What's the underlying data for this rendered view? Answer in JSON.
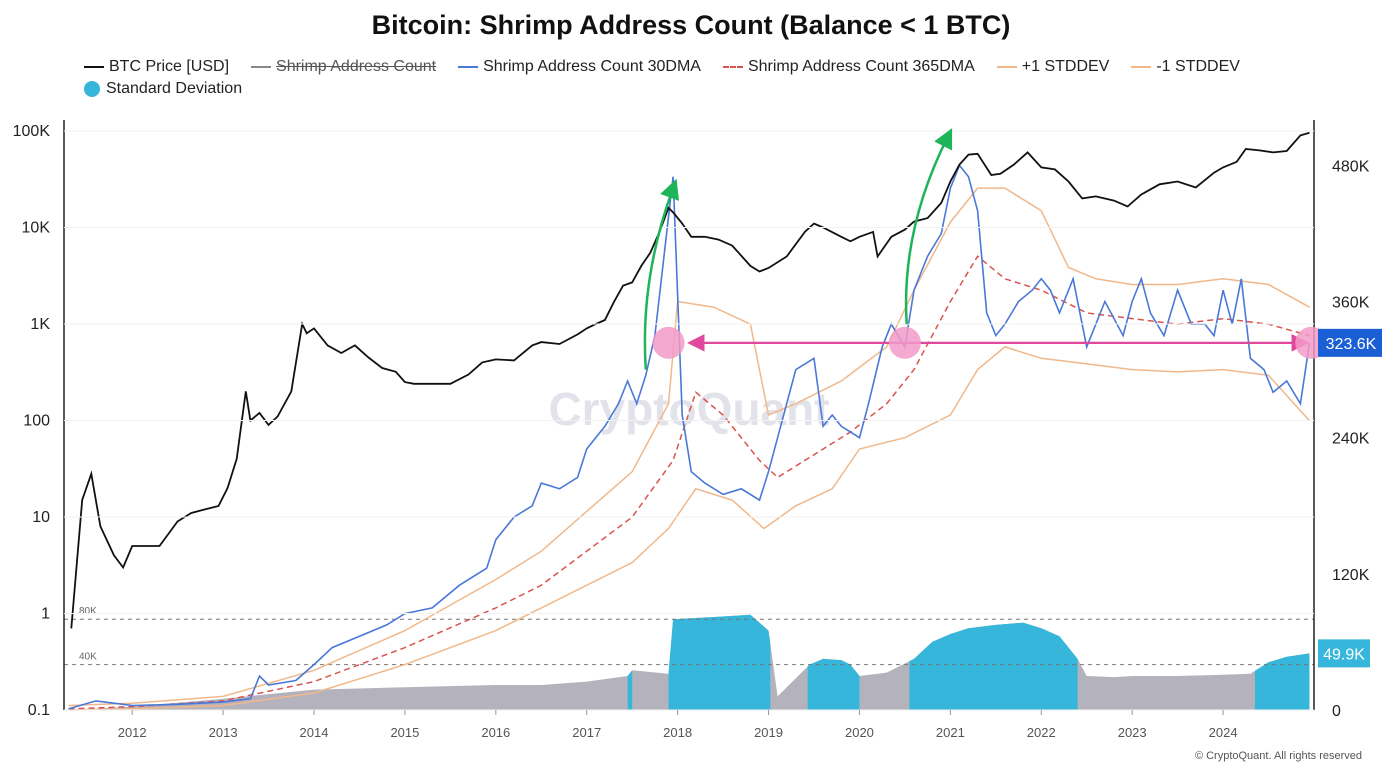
{
  "title": "Bitcoin: Shrimp Address Count (Balance < 1 BTC)",
  "copyright": "© CryptoQuant. All rights reserved",
  "watermark": "CryptoQuant",
  "colors": {
    "price": "#111111",
    "shrimp_raw": "#888888",
    "dma30": "#4a78d8",
    "dma365": "#d9534f",
    "std_band": "#f0b88a",
    "std_dev": "#36b6da",
    "std_dev_grey": "#b4b3bd",
    "arrow_green": "#1db45a",
    "arrow_pink": "#e0489e",
    "marker_pink": "#f29ac8",
    "value_box_blue": "#1a5fd6",
    "value_box_cyan": "#36b6da"
  },
  "legend": [
    {
      "label": "BTC Price [USD]",
      "key": "price",
      "style": "solid",
      "strike": false
    },
    {
      "label": "Shrimp Address Count",
      "key": "shrimp_raw",
      "style": "solid",
      "strike": true
    },
    {
      "label": "Shrimp Address Count 30DMA",
      "key": "dma30",
      "style": "solid",
      "strike": false
    },
    {
      "label": "Shrimp Address Count 365DMA",
      "key": "dma365",
      "style": "dashed",
      "strike": false
    },
    {
      "label": "+1 STDDEV",
      "key": "std_band",
      "style": "solid",
      "strike": false
    },
    {
      "label": "-1 STDDEV",
      "key": "std_band",
      "style": "solid",
      "strike": false
    },
    {
      "label": "Standard Deviation",
      "key": "std_dev",
      "style": "dot",
      "strike": false
    }
  ],
  "annotations": {
    "current_value_label": "323.6K",
    "std_value_label": "49.9K",
    "std_ref_80k": "80K",
    "std_ref_40k": "40K"
  },
  "chart_data": {
    "type": "line",
    "x_ticks": [
      "2012",
      "2013",
      "2014",
      "2015",
      "2016",
      "2017",
      "2018",
      "2019",
      "2020",
      "2021",
      "2022",
      "2023",
      "2024"
    ],
    "xlim": [
      2011.25,
      2025.0
    ],
    "y_left": {
      "scale": "log",
      "ticks": [
        "0.1",
        "1",
        "10",
        "100",
        "1K",
        "10K",
        "100K"
      ],
      "tick_values": [
        0.1,
        1,
        10,
        100,
        1000,
        10000,
        100000
      ],
      "ylim": [
        0.1,
        130000
      ]
    },
    "y_right": {
      "scale": "linear",
      "ticks": [
        "0",
        "120K",
        "240K",
        "360K",
        "480K"
      ],
      "tick_values": [
        0,
        120000,
        240000,
        360000,
        480000
      ],
      "ylim": [
        0,
        520000
      ]
    },
    "series": [
      {
        "name": "BTC Price [USD]",
        "axis": "left",
        "x": [
          2011.33,
          2011.45,
          2011.55,
          2011.65,
          2011.8,
          2011.9,
          2012.0,
          2012.1,
          2012.3,
          2012.5,
          2012.65,
          2012.8,
          2012.95,
          2013.05,
          2013.15,
          2013.25,
          2013.3,
          2013.4,
          2013.5,
          2013.6,
          2013.75,
          2013.87,
          2013.92,
          2014.0,
          2014.15,
          2014.3,
          2014.45,
          2014.6,
          2014.75,
          2014.9,
          2015.0,
          2015.1,
          2015.3,
          2015.5,
          2015.7,
          2015.85,
          2016.0,
          2016.2,
          2016.4,
          2016.5,
          2016.7,
          2016.9,
          2017.0,
          2017.1,
          2017.2,
          2017.3,
          2017.4,
          2017.5,
          2017.6,
          2017.7,
          2017.8,
          2017.9,
          2017.96,
          2018.05,
          2018.15,
          2018.3,
          2018.45,
          2018.6,
          2018.8,
          2018.9,
          2019.0,
          2019.2,
          2019.4,
          2019.5,
          2019.6,
          2019.8,
          2019.9,
          2020.0,
          2020.15,
          2020.2,
          2020.35,
          2020.5,
          2020.6,
          2020.75,
          2020.9,
          2021.0,
          2021.1,
          2021.2,
          2021.3,
          2021.45,
          2021.55,
          2021.7,
          2021.85,
          2022.0,
          2022.15,
          2022.3,
          2022.45,
          2022.6,
          2022.8,
          2022.95,
          2023.1,
          2023.3,
          2023.5,
          2023.7,
          2023.9,
          2024.0,
          2024.15,
          2024.25,
          2024.4,
          2024.55,
          2024.7,
          2024.85,
          2024.95
        ],
        "y": [
          0.7,
          15,
          28,
          8,
          4,
          3,
          5,
          5,
          5,
          9,
          11,
          12,
          13,
          20,
          40,
          200,
          100,
          120,
          90,
          110,
          200,
          1000,
          800,
          900,
          600,
          500,
          600,
          450,
          350,
          320,
          250,
          240,
          240,
          240,
          300,
          400,
          430,
          420,
          600,
          650,
          620,
          780,
          900,
          1000,
          1100,
          1700,
          2500,
          2700,
          4000,
          5500,
          9000,
          16000,
          14000,
          11000,
          8000,
          8000,
          7500,
          6500,
          4000,
          3500,
          3800,
          5000,
          9000,
          11000,
          10000,
          8000,
          7200,
          8000,
          9000,
          5000,
          8000,
          9500,
          11500,
          12500,
          18000,
          30000,
          45000,
          57000,
          58000,
          35000,
          36000,
          45000,
          60000,
          42000,
          40000,
          30000,
          20000,
          21000,
          19000,
          16500,
          22000,
          28000,
          30000,
          26000,
          37000,
          42000,
          48000,
          65000,
          63000,
          60000,
          62000,
          90000,
          96000
        ]
      },
      {
        "name": "Shrimp Address Count 30DMA",
        "axis": "right",
        "x": [
          2011.3,
          2011.6,
          2012.0,
          2012.5,
          2013.0,
          2013.3,
          2013.4,
          2013.5,
          2013.8,
          2014.0,
          2014.2,
          2014.5,
          2014.8,
          2015.0,
          2015.3,
          2015.6,
          2015.9,
          2016.0,
          2016.2,
          2016.4,
          2016.5,
          2016.7,
          2016.9,
          2017.0,
          2017.2,
          2017.35,
          2017.45,
          2017.55,
          2017.65,
          2017.75,
          2017.85,
          2017.95,
          2018.05,
          2018.15,
          2018.3,
          2018.5,
          2018.7,
          2018.9,
          2019.0,
          2019.1,
          2019.3,
          2019.5,
          2019.6,
          2019.7,
          2019.8,
          2020.0,
          2020.1,
          2020.25,
          2020.35,
          2020.5,
          2020.6,
          2020.75,
          2020.9,
          2021.0,
          2021.1,
          2021.2,
          2021.3,
          2021.4,
          2021.5,
          2021.6,
          2021.75,
          2021.9,
          2022.0,
          2022.1,
          2022.2,
          2022.35,
          2022.5,
          2022.7,
          2022.9,
          2023.0,
          2023.1,
          2023.2,
          2023.35,
          2023.5,
          2023.65,
          2023.8,
          2023.9,
          2024.0,
          2024.1,
          2024.2,
          2024.3,
          2024.45,
          2024.55,
          2024.7,
          2024.85,
          2024.95
        ],
        "y": [
          1000,
          8000,
          4000,
          5000,
          7000,
          10000,
          30000,
          22000,
          26000,
          40000,
          55000,
          65000,
          75000,
          85000,
          90000,
          110000,
          125000,
          150000,
          170000,
          180000,
          200000,
          195000,
          205000,
          230000,
          250000,
          270000,
          290000,
          270000,
          295000,
          330000,
          400000,
          470000,
          260000,
          210000,
          200000,
          190000,
          195000,
          185000,
          210000,
          240000,
          300000,
          310000,
          250000,
          260000,
          250000,
          240000,
          270000,
          320000,
          340000,
          320000,
          370000,
          400000,
          420000,
          460000,
          480000,
          470000,
          440000,
          350000,
          330000,
          340000,
          360000,
          370000,
          380000,
          370000,
          350000,
          380000,
          320000,
          360000,
          330000,
          360000,
          380000,
          350000,
          330000,
          370000,
          340000,
          340000,
          330000,
          370000,
          340000,
          380000,
          310000,
          300000,
          280000,
          290000,
          270000,
          323600
        ]
      },
      {
        "name": "Shrimp Address Count 365DMA",
        "axis": "right",
        "x": [
          2011.3,
          2012.0,
          2013.0,
          2014.0,
          2015.0,
          2016.0,
          2016.5,
          2017.0,
          2017.5,
          2017.95,
          2018.2,
          2018.5,
          2018.9,
          2019.1,
          2019.5,
          2019.9,
          2020.3,
          2020.6,
          2021.0,
          2021.3,
          2021.6,
          2022.0,
          2022.5,
          2023.0,
          2023.5,
          2024.0,
          2024.5,
          2024.95
        ],
        "y": [
          1000,
          3000,
          8000,
          25000,
          55000,
          90000,
          110000,
          140000,
          170000,
          220000,
          280000,
          260000,
          220000,
          205000,
          225000,
          245000,
          270000,
          300000,
          360000,
          400000,
          380000,
          370000,
          350000,
          345000,
          340000,
          345000,
          340000,
          330000
        ]
      },
      {
        "name": "+1 STDDEV",
        "axis": "right",
        "x": [
          2011.3,
          2012.0,
          2013.0,
          2014.0,
          2015.0,
          2016.0,
          2016.5,
          2017.0,
          2017.5,
          2017.9,
          2018.0,
          2018.4,
          2018.8,
          2019.0,
          2019.3,
          2019.8,
          2020.3,
          2020.6,
          2021.0,
          2021.3,
          2021.6,
          2022.0,
          2022.3,
          2022.6,
          2023.0,
          2023.5,
          2024.0,
          2024.5,
          2024.95
        ],
        "y": [
          4000,
          6000,
          12000,
          35000,
          70000,
          115000,
          140000,
          175000,
          210000,
          270000,
          360000,
          355000,
          340000,
          260000,
          270000,
          290000,
          320000,
          370000,
          430000,
          460000,
          460000,
          440000,
          390000,
          380000,
          375000,
          375000,
          380000,
          375000,
          355000
        ]
      },
      {
        "name": "-1 STDDEV",
        "axis": "right",
        "x": [
          2011.3,
          2012.0,
          2013.0,
          2014.0,
          2015.0,
          2016.0,
          2016.5,
          2017.0,
          2017.5,
          2017.9,
          2018.2,
          2018.6,
          2018.95,
          2019.3,
          2019.7,
          2020.0,
          2020.5,
          2021.0,
          2021.3,
          2021.6,
          2022.0,
          2022.5,
          2023.0,
          2023.5,
          2024.0,
          2024.5,
          2024.95
        ],
        "y": [
          0,
          1000,
          4000,
          15000,
          40000,
          70000,
          90000,
          110000,
          130000,
          160000,
          195000,
          185000,
          160000,
          180000,
          195000,
          230000,
          240000,
          260000,
          300000,
          320000,
          310000,
          305000,
          300000,
          298000,
          300000,
          295000,
          255000
        ]
      },
      {
        "name": "Standard Deviation",
        "axis": "right",
        "x": [
          2011.3,
          2012.0,
          2013.0,
          2014.0,
          2015.0,
          2016.0,
          2016.5,
          2017.0,
          2017.45,
          2017.5,
          2017.9,
          2017.95,
          2018.4,
          2018.8,
          2019.0,
          2019.1,
          2019.2,
          2019.45,
          2019.6,
          2019.8,
          2019.9,
          2020.0,
          2020.3,
          2020.6,
          2020.8,
          2021.0,
          2021.2,
          2021.5,
          2021.8,
          2022.0,
          2022.2,
          2022.4,
          2022.5,
          2022.8,
          2023.0,
          2023.5,
          2024.0,
          2024.3,
          2024.5,
          2024.7,
          2024.95
        ],
        "y": [
          0,
          3000,
          10000,
          18000,
          20000,
          22000,
          22000,
          25000,
          30000,
          35000,
          32000,
          80000,
          82000,
          84000,
          70000,
          12000,
          20000,
          40000,
          45000,
          44000,
          40000,
          30000,
          33000,
          45000,
          60000,
          67000,
          72000,
          75000,
          77000,
          72000,
          65000,
          45000,
          30000,
          29000,
          30000,
          30000,
          31000,
          32000,
          42000,
          47000,
          49900
        ]
      }
    ],
    "std_highlight_ranges": [
      [
        2017.45,
        2017.5
      ],
      [
        2017.9,
        2019.02
      ],
      [
        2019.43,
        2020.0
      ],
      [
        2020.55,
        2022.4
      ],
      [
        2024.35,
        2024.95
      ]
    ]
  }
}
